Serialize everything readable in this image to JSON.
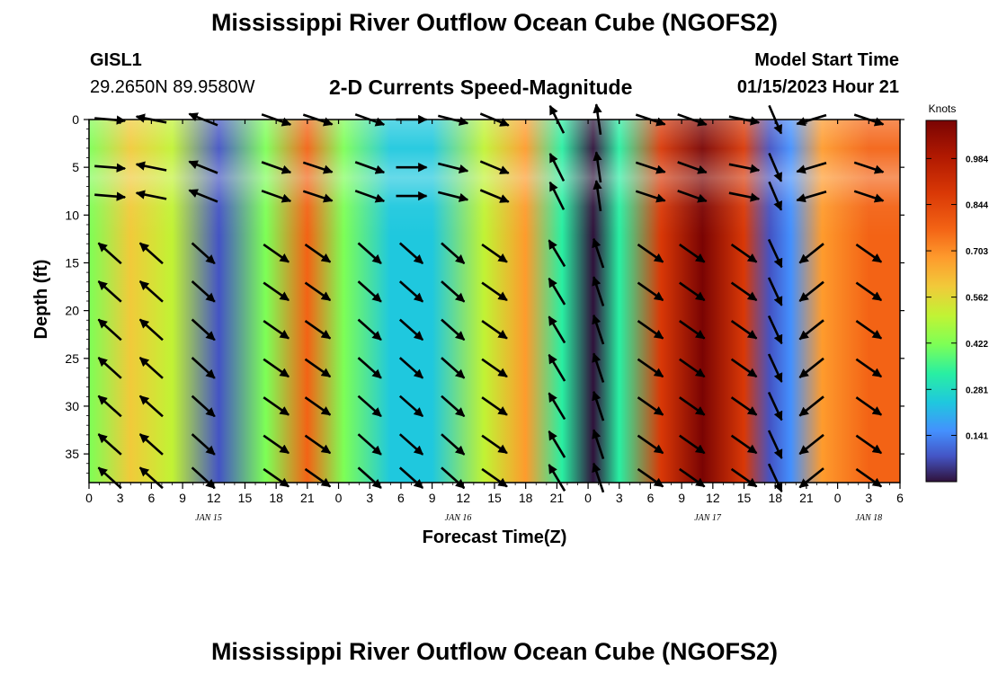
{
  "header": {
    "title": "Mississippi River Outflow Ocean Cube (NGOFS2)",
    "station": "GISL1",
    "coords": "29.2650N  89.9580W",
    "subtitle": "2-D Currents Speed-Magnitude",
    "start_label": "Model Start Time",
    "start_time": "01/15/2023 Hour 21"
  },
  "footer": {
    "title": "Mississippi River Outflow Ocean Cube (NGOFS2)"
  },
  "chart_data": {
    "type": "heatmap",
    "title": "2-D Currents Speed-Magnitude",
    "xlabel": "Forecast Time(Z)",
    "ylabel": "Depth (ft)",
    "x_hours_range": [
      0,
      78
    ],
    "x_tick_hours": [
      0,
      3,
      6,
      9,
      12,
      15,
      18,
      21,
      24,
      27,
      30,
      33,
      36,
      39,
      42,
      45,
      48,
      51,
      54,
      57,
      60,
      63,
      66,
      69,
      72,
      75,
      78
    ],
    "x_tick_labels": [
      "0",
      "3",
      "6",
      "9",
      "12",
      "15",
      "18",
      "21",
      "0",
      "3",
      "6",
      "9",
      "12",
      "15",
      "18",
      "21",
      "0",
      "3",
      "6",
      "9",
      "12",
      "15",
      "18",
      "21",
      "0",
      "3",
      "6"
    ],
    "date_labels": [
      {
        "label": "JAN 15",
        "hour": 11.5
      },
      {
        "label": "JAN 16",
        "hour": 35.5
      },
      {
        "label": "JAN 17",
        "hour": 59.5
      },
      {
        "label": "JAN 18",
        "hour": 75
      }
    ],
    "ylim": [
      0,
      38
    ],
    "y_ticks": [
      0,
      5,
      10,
      15,
      20,
      25,
      30,
      35
    ],
    "y_tick_labels": [
      "0",
      "5",
      "10",
      "15",
      "20",
      "25",
      "30",
      "35"
    ],
    "colorbar": {
      "label": "Knots",
      "range": [
        0,
        1.1
      ],
      "ticks": [
        0.141,
        0.281,
        0.422,
        0.562,
        0.703,
        0.844,
        0.984
      ],
      "tick_labels": [
        "0.141",
        "0.281",
        "0.422",
        "0.562",
        "0.703",
        "0.844",
        "0.984"
      ]
    },
    "speed_profile": [
      {
        "hour": 0,
        "knots": 0.44
      },
      {
        "hour": 4,
        "knots": 0.6
      },
      {
        "hour": 8,
        "knots": 0.55
      },
      {
        "hour": 12.5,
        "knots": 0.05
      },
      {
        "hour": 17,
        "knots": 0.45
      },
      {
        "hour": 21,
        "knots": 0.75
      },
      {
        "hour": 24.5,
        "knots": 0.45
      },
      {
        "hour": 29,
        "knots": 0.25
      },
      {
        "hour": 33,
        "knots": 0.22
      },
      {
        "hour": 38,
        "knots": 0.5
      },
      {
        "hour": 42,
        "knots": 0.66
      },
      {
        "hour": 45.5,
        "knots": 0.3
      },
      {
        "hour": 48.5,
        "knots": 0.03
      },
      {
        "hour": 51,
        "knots": 0.35
      },
      {
        "hour": 55,
        "knots": 0.9
      },
      {
        "hour": 59,
        "knots": 1.05
      },
      {
        "hour": 63,
        "knots": 0.85
      },
      {
        "hour": 65.5,
        "knots": 0.08
      },
      {
        "hour": 67.5,
        "knots": 0.15
      },
      {
        "hour": 70.5,
        "knots": 0.7
      },
      {
        "hour": 75,
        "knots": 0.8
      },
      {
        "hour": 78,
        "knots": 0.8
      }
    ],
    "arrow_columns": [
      {
        "hour": 2,
        "surface": [
          0.5,
          -0.04
        ],
        "deep": [
          -0.5,
          0.45
        ]
      },
      {
        "hour": 6,
        "surface": [
          -0.5,
          0.1
        ],
        "deep": [
          -0.5,
          0.45
        ]
      },
      {
        "hour": 11,
        "surface": [
          -0.5,
          0.2
        ],
        "deep": [
          0.5,
          -0.45
        ]
      },
      {
        "hour": 18,
        "surface": [
          0.7,
          -0.25
        ],
        "deep": [
          0.5,
          -0.35
        ]
      },
      {
        "hour": 22,
        "surface": [
          0.6,
          -0.2
        ],
        "deep": [
          0.5,
          -0.35
        ]
      },
      {
        "hour": 27,
        "surface": [
          0.7,
          -0.25
        ],
        "deep": [
          0.45,
          -0.4
        ]
      },
      {
        "hour": 31,
        "surface": [
          0.6,
          0.0
        ],
        "deep": [
          0.45,
          -0.4
        ]
      },
      {
        "hour": 35,
        "surface": [
          0.6,
          -0.15
        ],
        "deep": [
          0.45,
          -0.4
        ]
      },
      {
        "hour": 39,
        "surface": [
          0.6,
          -0.25
        ],
        "deep": [
          0.5,
          -0.35
        ]
      },
      {
        "hour": 45,
        "surface": [
          -0.3,
          0.6
        ],
        "deep": [
          -0.3,
          0.5
        ]
      },
      {
        "hour": 49,
        "surface": [
          -0.1,
          0.7
        ],
        "deep": [
          -0.2,
          0.6
        ]
      },
      {
        "hour": 54,
        "surface": [
          0.6,
          -0.2
        ],
        "deep": [
          0.5,
          -0.35
        ]
      },
      {
        "hour": 58,
        "surface": [
          0.7,
          -0.25
        ],
        "deep": [
          0.5,
          -0.35
        ]
      },
      {
        "hour": 63,
        "surface": [
          0.5,
          -0.1
        ],
        "deep": [
          0.5,
          -0.35
        ]
      },
      {
        "hour": 66,
        "surface": [
          0.3,
          -0.7
        ],
        "deep": [
          0.3,
          -0.65
        ]
      },
      {
        "hour": 69.5,
        "surface": [
          -0.5,
          -0.15
        ],
        "deep": [
          -0.5,
          -0.4
        ]
      },
      {
        "hour": 75,
        "surface": [
          0.6,
          -0.2
        ],
        "deep": [
          0.5,
          -0.35
        ]
      }
    ]
  }
}
